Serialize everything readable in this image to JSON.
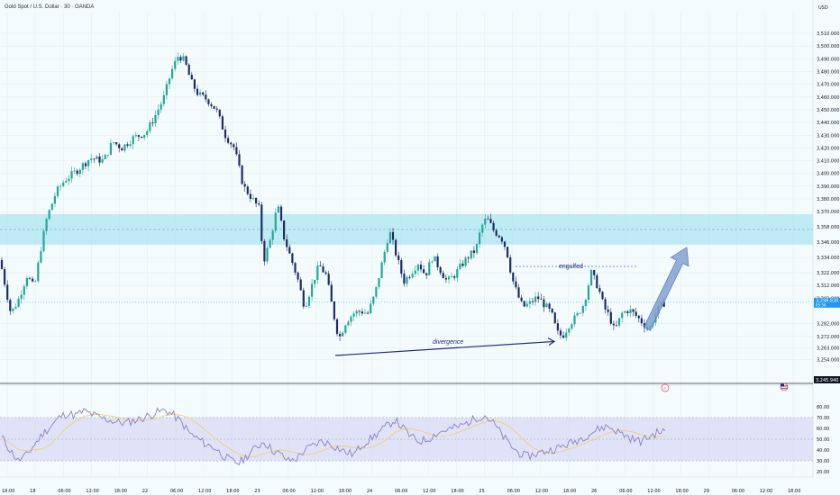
{
  "header": {
    "symbol_title": "Gold Spot / U.S. Dollar · 30 · OANDA",
    "currency": "USD"
  },
  "price_badges": {
    "last": "3,298.830",
    "countdown": "05:54",
    "level": "3,245.940"
  },
  "annotations": {
    "engulfed": "engulfed",
    "divergence": "divergence"
  },
  "colors": {
    "up": "#26a69a",
    "down": "#1e2d64",
    "zone": "#8fdcec",
    "arrow": "#7b9bd0",
    "rsi_line": "#8a7fc4",
    "rsi_ma": "#f0d070",
    "badge": "#2196f3"
  },
  "chart_data": {
    "type": "candlestick",
    "title": "Gold Spot / U.S. Dollar · 30 · OANDA",
    "ylim": [
      3245,
      3515
    ],
    "y_ticks": [
      "3,510.000",
      "3,500.000",
      "3,490.000",
      "3,480.000",
      "3,470.000",
      "3,460.000",
      "3,450.000",
      "3,440.000",
      "3,430.000",
      "3,420.000",
      "3,410.000",
      "3,400.000",
      "3,390.000",
      "3,380.000",
      "3,370.000",
      "3,358.000",
      "3,346.000",
      "3,334.000",
      "3,322.000",
      "3,312.000",
      "3,302.000",
      "3,282.000",
      "3,272.000",
      "3,263.000",
      "3,254.000"
    ],
    "x_ticks": [
      "18:00",
      "18",
      "06:00",
      "12:00",
      "18:00",
      "22",
      "06:00",
      "12:00",
      "18:00",
      "23",
      "06:00",
      "12:00",
      "18:00",
      "24",
      "06:00",
      "12:00",
      "18:00",
      "25",
      "06:00",
      "12:00",
      "18:00",
      "26",
      "06:00",
      "12:00",
      "18:00",
      "29",
      "06:00",
      "12:00",
      "18:00"
    ],
    "price_path": [
      [
        0,
        3332
      ],
      [
        12,
        3290
      ],
      [
        20,
        3300
      ],
      [
        30,
        3320
      ],
      [
        38,
        3310
      ],
      [
        45,
        3340
      ],
      [
        52,
        3365
      ],
      [
        62,
        3385
      ],
      [
        72,
        3395
      ],
      [
        85,
        3402
      ],
      [
        100,
        3412
      ],
      [
        115,
        3410
      ],
      [
        125,
        3425
      ],
      [
        135,
        3420
      ],
      [
        148,
        3428
      ],
      [
        162,
        3432
      ],
      [
        172,
        3445
      ],
      [
        182,
        3460
      ],
      [
        190,
        3480
      ],
      [
        198,
        3493
      ],
      [
        205,
        3488
      ],
      [
        212,
        3472
      ],
      [
        220,
        3462
      ],
      [
        230,
        3458
      ],
      [
        240,
        3450
      ],
      [
        250,
        3430
      ],
      [
        260,
        3420
      ],
      [
        270,
        3390
      ],
      [
        280,
        3380
      ],
      [
        288,
        3372
      ],
      [
        292,
        3330
      ],
      [
        300,
        3348
      ],
      [
        308,
        3375
      ],
      [
        315,
        3350
      ],
      [
        322,
        3335
      ],
      [
        330,
        3318
      ],
      [
        338,
        3295
      ],
      [
        346,
        3312
      ],
      [
        354,
        3328
      ],
      [
        362,
        3320
      ],
      [
        370,
        3290
      ],
      [
        376,
        3270
      ],
      [
        384,
        3284
      ],
      [
        392,
        3290
      ],
      [
        400,
        3292
      ],
      [
        408,
        3290
      ],
      [
        416,
        3305
      ],
      [
        424,
        3330
      ],
      [
        432,
        3355
      ],
      [
        440,
        3335
      ],
      [
        448,
        3315
      ],
      [
        456,
        3322
      ],
      [
        464,
        3330
      ],
      [
        472,
        3320
      ],
      [
        480,
        3335
      ],
      [
        488,
        3325
      ],
      [
        496,
        3315
      ],
      [
        504,
        3320
      ],
      [
        512,
        3328
      ],
      [
        520,
        3335
      ],
      [
        528,
        3340
      ],
      [
        534,
        3358
      ],
      [
        540,
        3365
      ],
      [
        548,
        3355
      ],
      [
        556,
        3350
      ],
      [
        562,
        3340
      ],
      [
        568,
        3318
      ],
      [
        574,
        3305
      ],
      [
        580,
        3295
      ],
      [
        588,
        3298
      ],
      [
        596,
        3303
      ],
      [
        604,
        3297
      ],
      [
        612,
        3290
      ],
      [
        618,
        3275
      ],
      [
        624,
        3272
      ],
      [
        632,
        3282
      ],
      [
        640,
        3288
      ],
      [
        648,
        3298
      ],
      [
        656,
        3322
      ],
      [
        664,
        3310
      ],
      [
        670,
        3295
      ],
      [
        676,
        3288
      ],
      [
        682,
        3276
      ],
      [
        690,
        3290
      ],
      [
        698,
        3293
      ],
      [
        706,
        3288
      ],
      [
        714,
        3282
      ],
      [
        720,
        3277
      ],
      [
        726,
        3288
      ],
      [
        732,
        3295
      ],
      [
        738,
        3299
      ]
    ],
    "zone": {
      "low": 3344,
      "high": 3368,
      "mid": 3356
    },
    "engulfed_level": 3327,
    "current_price": 3298.83,
    "divergence": {
      "from": [
        372,
        3257
      ],
      "to": [
        615,
        3268
      ]
    },
    "forecast_arrow": {
      "from": [
        718,
        3278
      ],
      "to": [
        762,
        3342
      ]
    },
    "rsi": {
      "ylim": [
        20,
        90
      ],
      "y_ticks": [
        "80.00",
        "70.00",
        "60.00",
        "50.00",
        "40.00",
        "30.00",
        "20.00"
      ],
      "band": [
        30,
        70
      ],
      "values": [
        52,
        40,
        30,
        35,
        45,
        55,
        62,
        70,
        74,
        72,
        76,
        73,
        70,
        68,
        66,
        65,
        67,
        69,
        72,
        75,
        77,
        72,
        65,
        55,
        50,
        45,
        42,
        35,
        30,
        28,
        35,
        42,
        48,
        40,
        36,
        30,
        32,
        40,
        44,
        48,
        46,
        42,
        38,
        36,
        45,
        50,
        56,
        62,
        68,
        60,
        52,
        48,
        50,
        55,
        58,
        60,
        62,
        66,
        70,
        72,
        65,
        55,
        45,
        38,
        34,
        36,
        38,
        40,
        42,
        45,
        48,
        52,
        56,
        60,
        62,
        58,
        54,
        50,
        48,
        52,
        56,
        58
      ]
    }
  }
}
